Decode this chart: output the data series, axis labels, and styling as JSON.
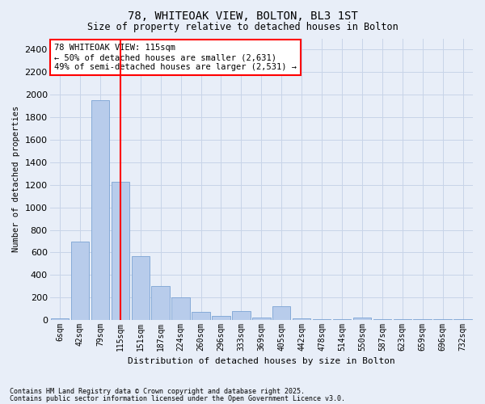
{
  "title1": "78, WHITEOAK VIEW, BOLTON, BL3 1ST",
  "title2": "Size of property relative to detached houses in Bolton",
  "xlabel": "Distribution of detached houses by size in Bolton",
  "ylabel": "Number of detached properties",
  "categories": [
    "6sqm",
    "42sqm",
    "79sqm",
    "115sqm",
    "151sqm",
    "187sqm",
    "224sqm",
    "260sqm",
    "296sqm",
    "333sqm",
    "369sqm",
    "405sqm",
    "442sqm",
    "478sqm",
    "514sqm",
    "550sqm",
    "587sqm",
    "623sqm",
    "659sqm",
    "696sqm",
    "732sqm"
  ],
  "values": [
    15,
    700,
    1950,
    1230,
    570,
    300,
    200,
    70,
    40,
    80,
    20,
    120,
    15,
    8,
    5,
    25,
    5,
    5,
    5,
    5,
    5
  ],
  "bar_color": "#b8cceb",
  "bar_edge_color": "#7ba3d4",
  "vline_color": "red",
  "vline_x": 3.0,
  "annotation_text": "78 WHITEOAK VIEW: 115sqm\n← 50% of detached houses are smaller (2,631)\n49% of semi-detached houses are larger (2,531) →",
  "annotation_box_color": "white",
  "annotation_box_edge_color": "red",
  "ylim": [
    0,
    2500
  ],
  "yticks": [
    0,
    200,
    400,
    600,
    800,
    1000,
    1200,
    1400,
    1600,
    1800,
    2000,
    2200,
    2400
  ],
  "grid_color": "#c8d4e8",
  "bg_color": "#e8eef8",
  "footer1": "Contains HM Land Registry data © Crown copyright and database right 2025.",
  "footer2": "Contains public sector information licensed under the Open Government Licence v3.0."
}
